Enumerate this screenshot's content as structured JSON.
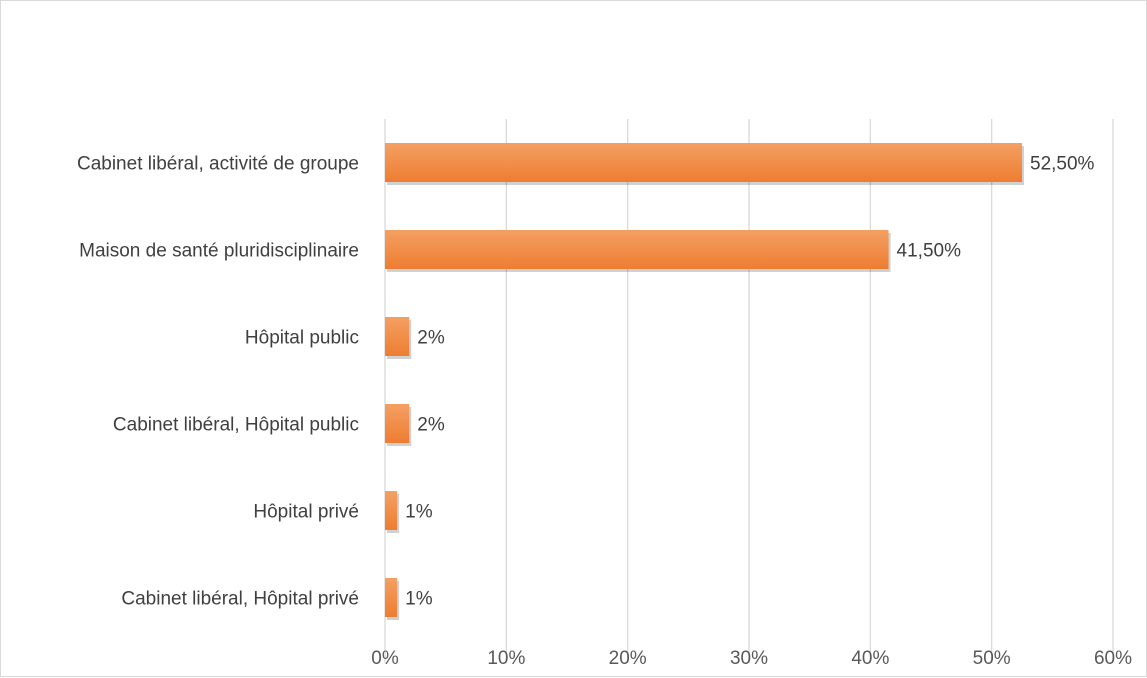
{
  "chart_data": {
    "type": "bar",
    "orientation": "horizontal",
    "title": "",
    "xlabel": "",
    "ylabel": "",
    "categories": [
      "Cabinet libéral, activité de groupe",
      "Maison de santé pluridisciplinaire",
      "Hôpital public",
      "Cabinet libéral, Hôpital public",
      "Hôpital privé",
      "Cabinet libéral, Hôpital privé"
    ],
    "values": [
      52.5,
      41.5,
      2,
      2,
      1,
      1
    ],
    "data_labels": [
      "52,50%",
      "41,50%",
      "2%",
      "2%",
      "1%",
      "1%"
    ],
    "xlim": [
      0,
      60
    ],
    "x_ticks": [
      0,
      10,
      20,
      30,
      40,
      50,
      60
    ],
    "x_tick_labels": [
      "0%",
      "10%",
      "20%",
      "30%",
      "40%",
      "50%",
      "60%"
    ],
    "grid": "vertical",
    "legend": "none",
    "colors": {
      "bar": "#ed7d31",
      "bar_light": "#f4a063",
      "grid": "#d9d9d9",
      "border": "#d9d9d9"
    }
  }
}
